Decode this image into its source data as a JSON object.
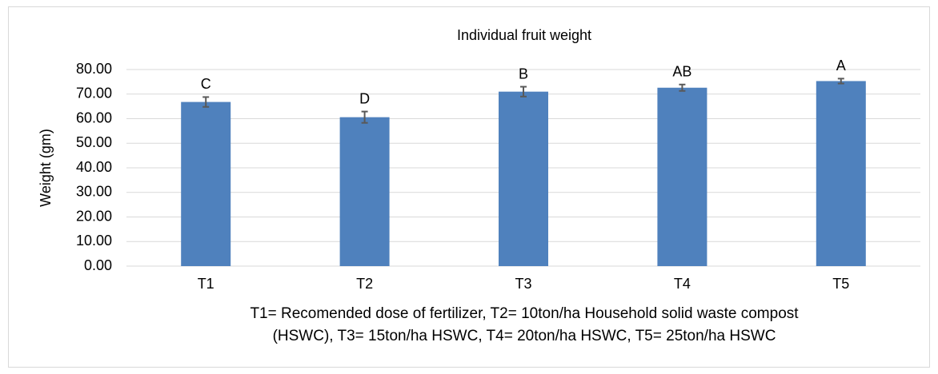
{
  "chart_data": {
    "type": "bar",
    "title": "Individual fruit weight",
    "ylabel": "Weight (gm)",
    "xlabel_lines": [
      "T1= Recomended dose of fertilizer, T2= 10ton/ha Household solid waste compost",
      "(HSWC), T3= 15ton/ha HSWC, T4= 20ton/ha HSWC, T5= 25ton/ha HSWC"
    ],
    "categories": [
      "T1",
      "T2",
      "T3",
      "T4",
      "T5"
    ],
    "values": [
      66.8,
      60.6,
      71.0,
      72.6,
      75.3
    ],
    "errors": [
      2.0,
      2.3,
      2.0,
      1.3,
      1.0
    ],
    "annotations": [
      "C",
      "D",
      "B",
      "AB",
      "A"
    ],
    "color": "#4f81bd",
    "error_color": "#595959",
    "ylim": [
      0,
      80
    ],
    "yticks": [
      {
        "value": 0,
        "label": "0.00"
      },
      {
        "value": 10,
        "label": "10.00"
      },
      {
        "value": 20,
        "label": "20.00"
      },
      {
        "value": 30,
        "label": "30.00"
      },
      {
        "value": 40,
        "label": "40.00"
      },
      {
        "value": 50,
        "label": "50.00"
      },
      {
        "value": 60,
        "label": "60.00"
      },
      {
        "value": 70,
        "label": "70.00"
      },
      {
        "value": 80,
        "label": "80.00"
      }
    ],
    "grid": true
  }
}
